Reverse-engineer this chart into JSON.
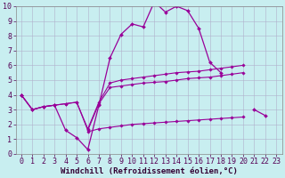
{
  "background_color": "#c8eef0",
  "grid_color": "#b0b0cc",
  "line_color": "#990099",
  "xlim": [
    -0.5,
    23.5
  ],
  "ylim": [
    0,
    10
  ],
  "xlabel": "Windchill (Refroidissement éolien,°C)",
  "xlabel_fontsize": 6.5,
  "xticks": [
    0,
    1,
    2,
    3,
    4,
    5,
    6,
    7,
    8,
    9,
    10,
    11,
    12,
    13,
    14,
    15,
    16,
    17,
    18,
    19,
    20,
    21,
    22,
    23
  ],
  "yticks": [
    0,
    1,
    2,
    3,
    4,
    5,
    6,
    7,
    8,
    9,
    10
  ],
  "tick_fontsize": 6.0,
  "series1": [
    4.0,
    3.0,
    3.2,
    3.3,
    1.6,
    1.1,
    0.3,
    3.3,
    6.5,
    8.1,
    8.8,
    8.6,
    10.3,
    9.6,
    10.0,
    9.7,
    8.5,
    6.2,
    5.5,
    null,
    null,
    3.0,
    2.6,
    null
  ],
  "series2": [
    4.0,
    3.0,
    3.2,
    3.3,
    3.4,
    3.5,
    1.6,
    3.4,
    4.5,
    4.6,
    4.7,
    4.8,
    4.85,
    4.9,
    5.0,
    5.1,
    5.15,
    5.2,
    5.3,
    5.4,
    5.5,
    null,
    null,
    null
  ],
  "series3": [
    4.0,
    3.0,
    3.2,
    3.3,
    3.4,
    3.5,
    1.7,
    3.5,
    4.8,
    5.0,
    5.1,
    5.2,
    5.3,
    5.4,
    5.5,
    5.55,
    5.6,
    5.7,
    5.8,
    5.9,
    6.0,
    null,
    null,
    null
  ],
  "series4": [
    4.0,
    null,
    null,
    null,
    null,
    null,
    1.5,
    1.7,
    1.8,
    1.9,
    2.0,
    2.05,
    2.1,
    2.15,
    2.2,
    2.25,
    2.3,
    2.35,
    2.4,
    2.45,
    2.5,
    null,
    null,
    null
  ]
}
